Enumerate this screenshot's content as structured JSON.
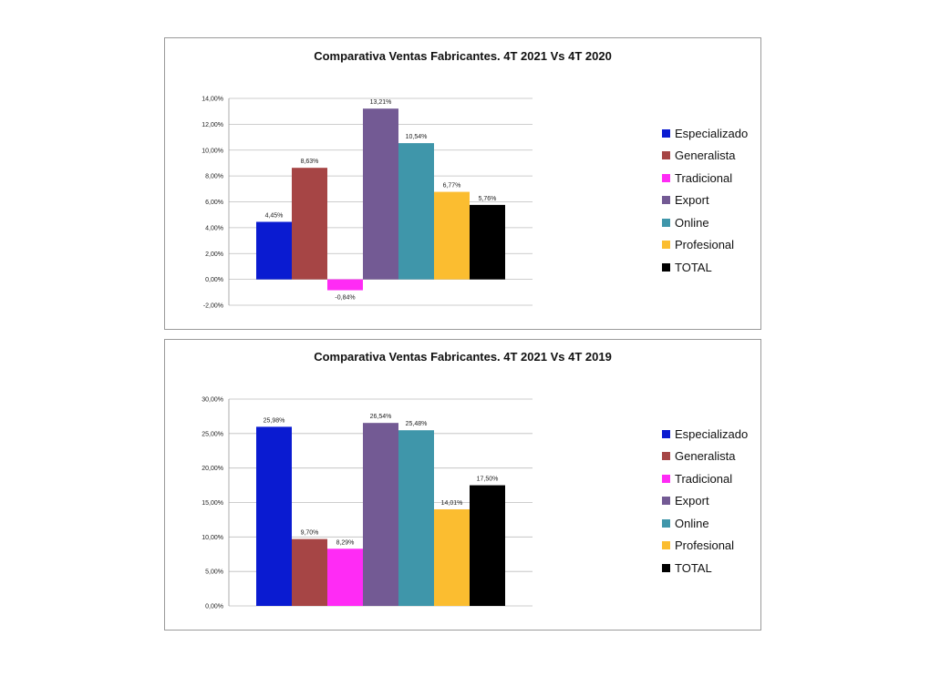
{
  "palette": [
    "#0a1bd1",
    "#a64545",
    "#ff2bf5",
    "#735a94",
    "#3f96aa",
    "#fbbd30",
    "#000000"
  ],
  "chart_data": [
    {
      "type": "bar",
      "title": "Comparativa Ventas Fabricantes. 4T 2021 Vs 4T 2020",
      "xlabel": "",
      "ylabel": "",
      "ylim": [
        -2,
        14
      ],
      "yticks": [
        -2,
        0,
        2,
        4,
        6,
        8,
        10,
        12,
        14
      ],
      "ytick_labels": [
        "-2,00%",
        "0,00%",
        "2,00%",
        "4,00%",
        "6,00%",
        "8,00%",
        "10,00%",
        "12,00%",
        "14,00%"
      ],
      "grid": true,
      "legend_position": "right",
      "series": [
        {
          "name": "Especializado",
          "values": [
            4.45
          ],
          "label": "4,45%"
        },
        {
          "name": "Generalista",
          "values": [
            8.63
          ],
          "label": "8,63%"
        },
        {
          "name": "Tradicional",
          "values": [
            -0.84
          ],
          "label": "-0,84%"
        },
        {
          "name": "Export",
          "values": [
            13.21
          ],
          "label": "13,21%"
        },
        {
          "name": "Online",
          "values": [
            10.54
          ],
          "label": "10,54%"
        },
        {
          "name": "Profesional",
          "values": [
            6.77
          ],
          "label": "6,77%"
        },
        {
          "name": "TOTAL",
          "values": [
            5.76
          ],
          "label": "5,76%"
        }
      ]
    },
    {
      "type": "bar",
      "title": "Comparativa Ventas Fabricantes. 4T 2021 Vs 4T 2019",
      "xlabel": "",
      "ylabel": "",
      "ylim": [
        0,
        30
      ],
      "yticks": [
        0,
        5,
        10,
        15,
        20,
        25,
        30
      ],
      "ytick_labels": [
        "0,00%",
        "5,00%",
        "10,00%",
        "15,00%",
        "20,00%",
        "25,00%",
        "30,00%"
      ],
      "grid": true,
      "legend_position": "right",
      "series": [
        {
          "name": "Especializado",
          "values": [
            25.98
          ],
          "label": "25,98%"
        },
        {
          "name": "Generalista",
          "values": [
            9.7
          ],
          "label": "9,70%"
        },
        {
          "name": "Tradicional",
          "values": [
            8.29
          ],
          "label": "8,29%"
        },
        {
          "name": "Export",
          "values": [
            26.54
          ],
          "label": "26,54%"
        },
        {
          "name": "Online",
          "values": [
            25.48
          ],
          "label": "25,48%"
        },
        {
          "name": "Profesional",
          "values": [
            14.01
          ],
          "label": "14,01%"
        },
        {
          "name": "TOTAL",
          "values": [
            17.5
          ],
          "label": "17,50%"
        }
      ]
    }
  ]
}
